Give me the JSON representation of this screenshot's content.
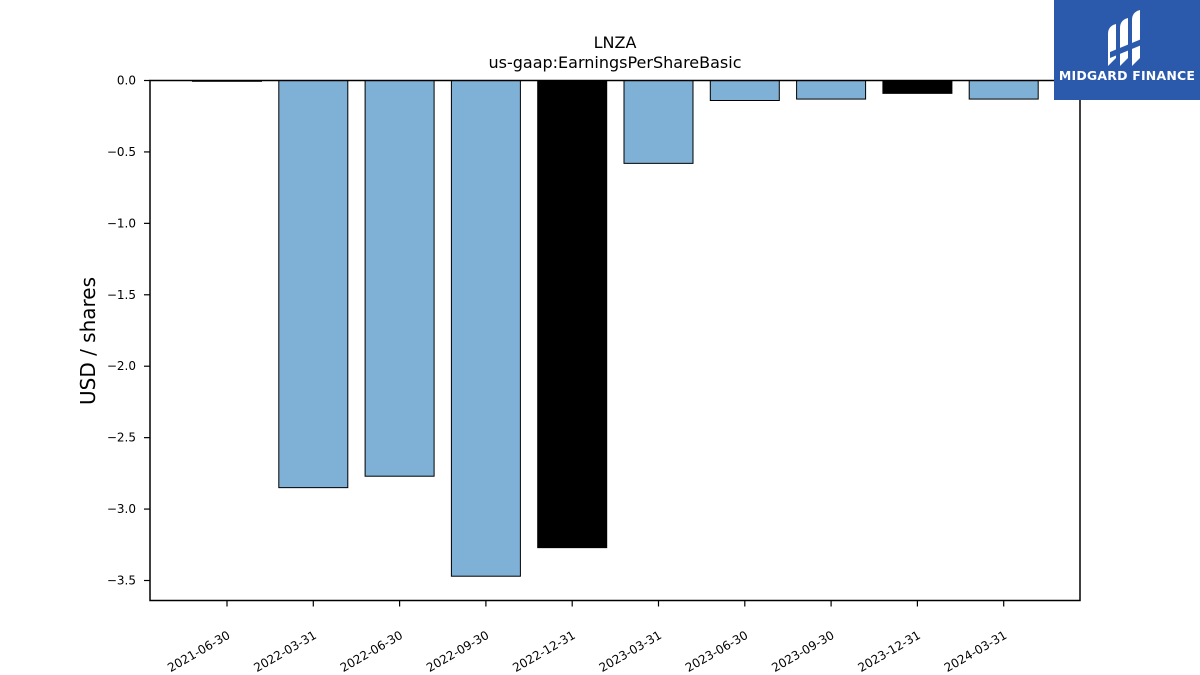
{
  "logo": {
    "text": "MIDGARD FINANCE",
    "background": "#2b5aad"
  },
  "chart_data": {
    "type": "bar",
    "title": "LNZA",
    "subtitle": "us-gaap:EarningsPerShareBasic",
    "xlabel": "",
    "ylabel": "USD / shares",
    "categories": [
      "2021-06-30",
      "2022-03-31",
      "2022-06-30",
      "2022-09-30",
      "2022-12-31",
      "2023-03-31",
      "2023-06-30",
      "2023-09-30",
      "2023-12-31",
      "2024-03-31"
    ],
    "values": [
      0.0,
      -2.85,
      -2.77,
      -3.47,
      -3.27,
      -0.58,
      -0.14,
      -0.13,
      -0.09,
      -0.13
    ],
    "bar_colors": [
      "#7fb0d5",
      "#7fb0d5",
      "#7fb0d5",
      "#7fb0d5",
      "#000000",
      "#7fb0d5",
      "#7fb0d5",
      "#7fb0d5",
      "#000000",
      "#7fb0d5"
    ],
    "ylim": [
      -3.64,
      0.0
    ],
    "yticks": [
      0.0,
      -0.5,
      -1.0,
      -1.5,
      -2.0,
      -2.5,
      -3.0,
      -3.5
    ],
    "ytick_labels": [
      "0.0",
      "−0.5",
      "−1.0",
      "−1.5",
      "−2.0",
      "−2.5",
      "−3.0",
      "−3.5"
    ],
    "grid": false,
    "legend": "none"
  }
}
